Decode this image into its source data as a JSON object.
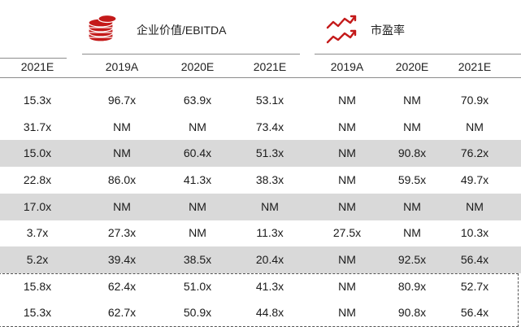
{
  "header": {
    "ev_ebitda_label": "企业价值/EBITDA",
    "pe_label": "市盈率",
    "ev_icon": "coin-stack-icon",
    "pe_icon": "trend-line-icon",
    "accent_color": "#c41a1a"
  },
  "columns": [
    "2021E",
    "2019A",
    "2020E",
    "2021E",
    "2019A",
    "2020E",
    "2021E"
  ],
  "rows": [
    {
      "shaded": false,
      "cells": [
        "15.3x",
        "96.7x",
        "63.9x",
        "53.1x",
        "NM",
        "NM",
        "70.9x"
      ]
    },
    {
      "shaded": false,
      "cells": [
        "31.7x",
        "NM",
        "NM",
        "73.4x",
        "NM",
        "NM",
        "NM"
      ]
    },
    {
      "shaded": true,
      "cells": [
        "15.0x",
        "NM",
        "60.4x",
        "51.3x",
        "NM",
        "90.8x",
        "76.2x"
      ]
    },
    {
      "shaded": false,
      "cells": [
        "22.8x",
        "86.0x",
        "41.3x",
        "38.3x",
        "NM",
        "59.5x",
        "49.7x"
      ]
    },
    {
      "shaded": true,
      "cells": [
        "17.0x",
        "NM",
        "NM",
        "NM",
        "NM",
        "NM",
        "NM"
      ]
    },
    {
      "shaded": false,
      "cells": [
        "3.7x",
        "27.3x",
        "NM",
        "11.3x",
        "27.5x",
        "NM",
        "10.3x"
      ]
    },
    {
      "shaded": true,
      "cells": [
        "5.2x",
        "39.4x",
        "38.5x",
        "20.4x",
        "NM",
        "92.5x",
        "56.4x"
      ]
    },
    {
      "shaded": false,
      "cells": [
        "15.8x",
        "62.4x",
        "51.0x",
        "41.3x",
        "NM",
        "80.9x",
        "52.7x"
      ]
    },
    {
      "shaded": false,
      "cells": [
        "15.3x",
        "62.7x",
        "50.9x",
        "44.8x",
        "NM",
        "90.8x",
        "56.4x"
      ]
    }
  ]
}
